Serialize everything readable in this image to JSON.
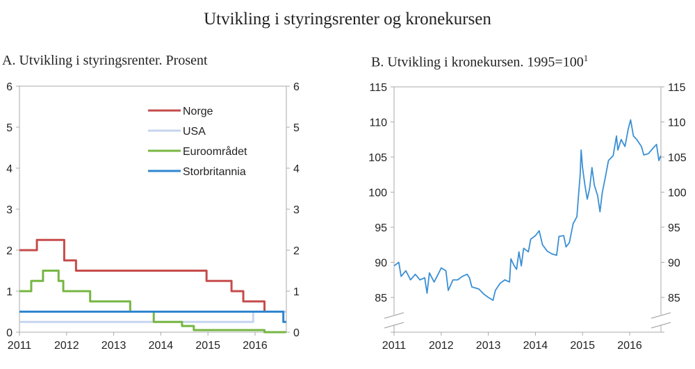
{
  "title": "Utvikling i styringsrenter og kronekursen",
  "chart_data": [
    {
      "type": "line",
      "step": true,
      "title": "A.  Utvikling i styringsrenter. Prosent",
      "xlim": [
        2011,
        2016.66
      ],
      "ylim": [
        0,
        6
      ],
      "yticks": [
        0,
        1,
        2,
        3,
        4,
        5,
        6
      ],
      "xticks": [
        2011,
        2012,
        2013,
        2014,
        2015,
        2016
      ],
      "legend_position": "top-right",
      "grid": false,
      "series": [
        {
          "name": "Norge",
          "color": "#c64b4b",
          "points": [
            [
              2011,
              2.0
            ],
            [
              2011.37,
              2.25
            ],
            [
              2011.95,
              1.75
            ],
            [
              2012.2,
              1.5
            ],
            [
              2014.97,
              1.25
            ],
            [
              2015.5,
              1.0
            ],
            [
              2015.75,
              0.75
            ],
            [
              2016.2,
              0.5
            ],
            [
              2016.66,
              0.5
            ]
          ]
        },
        {
          "name": "USA",
          "color": "#c5d5ef",
          "points": [
            [
              2011,
              0.25
            ],
            [
              2015.96,
              0.5
            ],
            [
              2016.66,
              0.5
            ]
          ]
        },
        {
          "name": "Euroområdet",
          "color": "#76b642",
          "points": [
            [
              2011,
              1.0
            ],
            [
              2011.25,
              1.25
            ],
            [
              2011.5,
              1.5
            ],
            [
              2011.83,
              1.25
            ],
            [
              2011.93,
              1.0
            ],
            [
              2012.5,
              0.75
            ],
            [
              2013.35,
              0.5
            ],
            [
              2013.85,
              0.25
            ],
            [
              2014.45,
              0.15
            ],
            [
              2014.7,
              0.05
            ],
            [
              2016.2,
              0.0
            ],
            [
              2016.66,
              0.0
            ]
          ]
        },
        {
          "name": "Storbritannia",
          "color": "#2e86cf",
          "points": [
            [
              2011,
              0.5
            ],
            [
              2016.6,
              0.25
            ],
            [
              2016.66,
              0.25
            ]
          ]
        }
      ]
    },
    {
      "type": "line",
      "title": "B.  Utvikling i kronekursen. 1995=100",
      "title_superscript": "1",
      "xlim": [
        2011,
        2016.66
      ],
      "ylim": [
        85,
        115
      ],
      "axis_break": true,
      "yticks": [
        85,
        90,
        95,
        100,
        105,
        110,
        115
      ],
      "xticks": [
        2011,
        2012,
        2013,
        2014,
        2015,
        2016
      ],
      "grid": false,
      "series": [
        {
          "color": "#3a8fd4",
          "points": [
            [
              2011.0,
              89.5
            ],
            [
              2011.1,
              90.0
            ],
            [
              2011.15,
              88.0
            ],
            [
              2011.25,
              88.8
            ],
            [
              2011.35,
              87.5
            ],
            [
              2011.45,
              88.3
            ],
            [
              2011.55,
              87.5
            ],
            [
              2011.65,
              87.8
            ],
            [
              2011.7,
              85.6
            ],
            [
              2011.75,
              88.5
            ],
            [
              2011.85,
              87.2
            ],
            [
              2011.95,
              88.5
            ],
            [
              2012.0,
              89.2
            ],
            [
              2012.1,
              88.8
            ],
            [
              2012.15,
              86.0
            ],
            [
              2012.25,
              87.5
            ],
            [
              2012.35,
              87.5
            ],
            [
              2012.45,
              88.0
            ],
            [
              2012.55,
              88.3
            ],
            [
              2012.6,
              87.8
            ],
            [
              2012.65,
              86.5
            ],
            [
              2012.8,
              86.2
            ],
            [
              2012.9,
              85.5
            ],
            [
              2013.0,
              85.0
            ],
            [
              2013.1,
              84.6
            ],
            [
              2013.15,
              86.0
            ],
            [
              2013.25,
              87.0
            ],
            [
              2013.35,
              87.5
            ],
            [
              2013.45,
              87.2
            ],
            [
              2013.48,
              90.5
            ],
            [
              2013.55,
              89.5
            ],
            [
              2013.6,
              89.0
            ],
            [
              2013.65,
              91.5
            ],
            [
              2013.7,
              89.5
            ],
            [
              2013.75,
              92.0
            ],
            [
              2013.85,
              91.5
            ],
            [
              2013.9,
              93.3
            ],
            [
              2014.0,
              93.8
            ],
            [
              2014.08,
              94.5
            ],
            [
              2014.15,
              92.5
            ],
            [
              2014.25,
              91.6
            ],
            [
              2014.35,
              91.2
            ],
            [
              2014.45,
              91.0
            ],
            [
              2014.5,
              93.7
            ],
            [
              2014.6,
              93.8
            ],
            [
              2014.65,
              92.2
            ],
            [
              2014.72,
              92.8
            ],
            [
              2014.8,
              95.5
            ],
            [
              2014.88,
              96.5
            ],
            [
              2014.92,
              100
            ],
            [
              2014.95,
              102.5
            ],
            [
              2014.97,
              106
            ],
            [
              2015.0,
              103.5
            ],
            [
              2015.05,
              101
            ],
            [
              2015.1,
              99
            ],
            [
              2015.15,
              100.5
            ],
            [
              2015.2,
              103.5
            ],
            [
              2015.25,
              101
            ],
            [
              2015.32,
              99.5
            ],
            [
              2015.37,
              97.2
            ],
            [
              2015.42,
              100
            ],
            [
              2015.48,
              102
            ],
            [
              2015.55,
              104.5
            ],
            [
              2015.65,
              105.2
            ],
            [
              2015.72,
              108
            ],
            [
              2015.75,
              106
            ],
            [
              2015.82,
              107.5
            ],
            [
              2015.9,
              106.5
            ],
            [
              2015.97,
              109
            ],
            [
              2016.02,
              110.3
            ],
            [
              2016.08,
              108
            ],
            [
              2016.15,
              107.5
            ],
            [
              2016.25,
              106.5
            ],
            [
              2016.3,
              105.3
            ],
            [
              2016.4,
              105.5
            ],
            [
              2016.5,
              106.3
            ],
            [
              2016.57,
              106.8
            ],
            [
              2016.62,
              104.5
            ],
            [
              2016.66,
              105.2
            ]
          ]
        }
      ]
    }
  ]
}
